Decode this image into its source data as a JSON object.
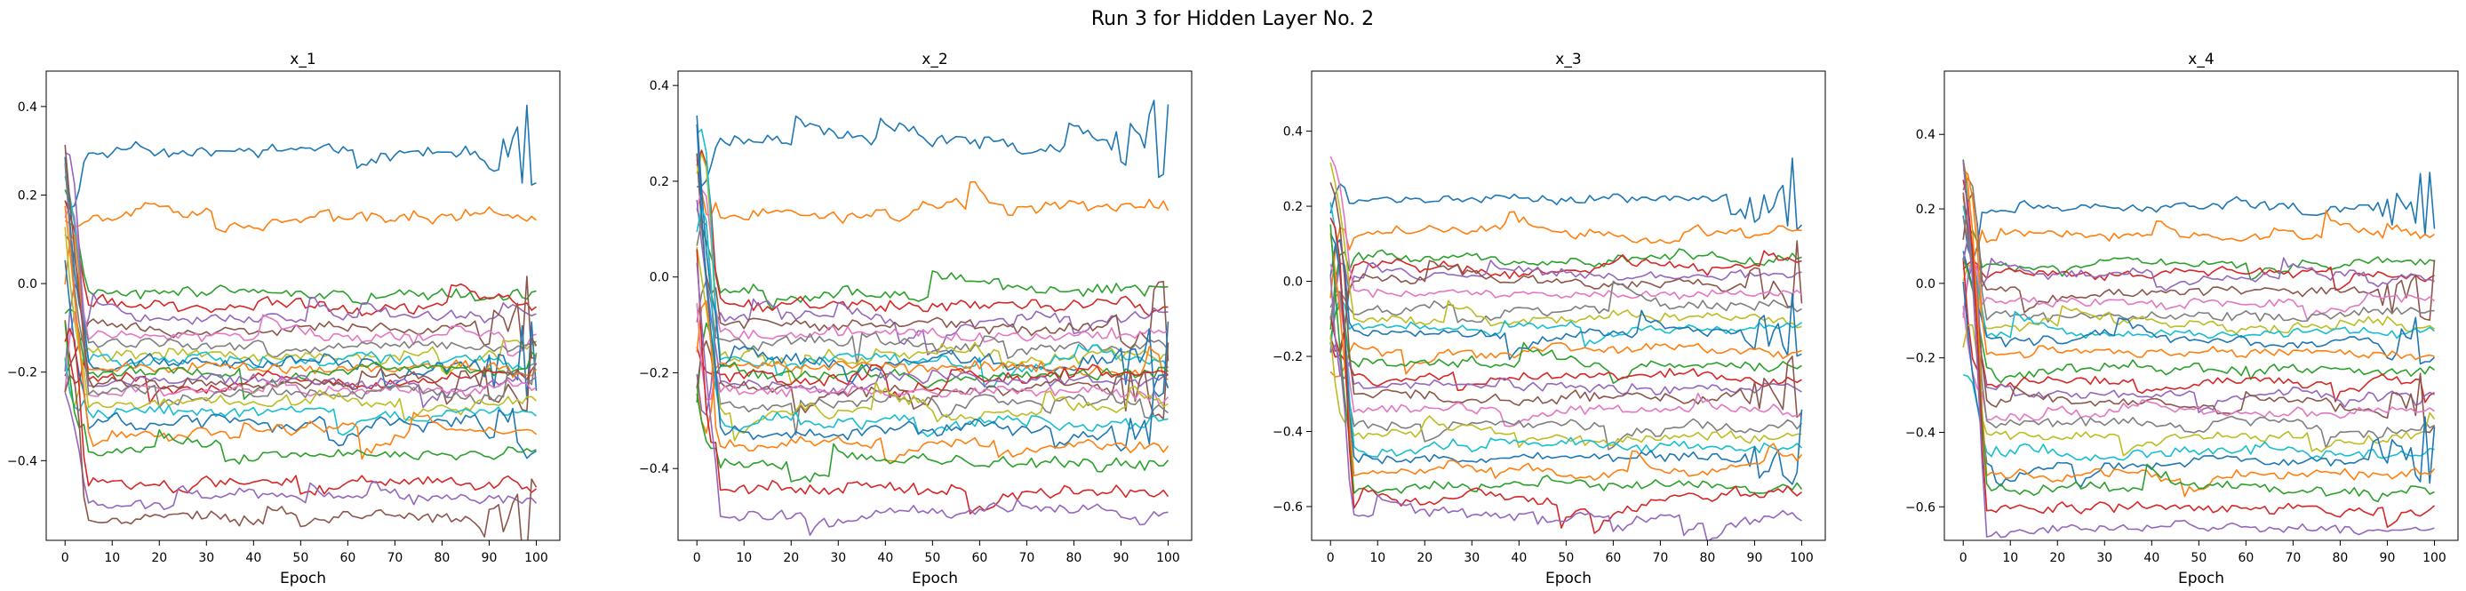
{
  "figure": {
    "title": "Run 3 for Hidden Layer No. 2",
    "palette": [
      "#1f77b4",
      "#ff7f0e",
      "#2ca02c",
      "#d62728",
      "#9467bd",
      "#8c564b",
      "#e377c2",
      "#7f7f7f",
      "#bcbd22",
      "#17becf"
    ]
  },
  "chart_data": [
    {
      "type": "line",
      "title": "x_1",
      "xlabel": "Epoch",
      "ylabel": "",
      "xlim": [
        -4,
        105
      ],
      "ylim": [
        -0.58,
        0.48
      ],
      "xticks": [
        0,
        10,
        20,
        30,
        40,
        50,
        60,
        70,
        80,
        90,
        100
      ],
      "yticks": [
        -0.4,
        -0.2,
        0.0,
        0.2,
        0.4
      ],
      "seed": 11,
      "series_final": [
        0.3,
        0.15,
        -0.02,
        -0.05,
        -0.08,
        -0.1,
        -0.12,
        -0.14,
        -0.16,
        -0.17,
        -0.18,
        -0.19,
        -0.2,
        -0.21,
        -0.22,
        -0.23,
        -0.24,
        -0.25,
        -0.27,
        -0.29,
        -0.31,
        -0.34,
        -0.38,
        -0.45,
        -0.49,
        -0.53
      ]
    },
    {
      "type": "line",
      "title": "x_2",
      "xlabel": "Epoch",
      "ylabel": "",
      "xlim": [
        -4,
        105
      ],
      "ylim": [
        -0.55,
        0.43
      ],
      "xticks": [
        0,
        10,
        20,
        30,
        40,
        50,
        60,
        70,
        80,
        90,
        100
      ],
      "yticks": [
        -0.4,
        -0.2,
        0.0,
        0.2,
        0.4
      ],
      "seed": 23,
      "series_final": [
        0.28,
        0.14,
        -0.03,
        -0.06,
        -0.08,
        -0.1,
        -0.12,
        -0.14,
        -0.16,
        -0.17,
        -0.18,
        -0.19,
        -0.2,
        -0.21,
        -0.22,
        -0.23,
        -0.24,
        -0.26,
        -0.28,
        -0.3,
        -0.32,
        -0.35,
        -0.39,
        -0.44,
        -0.49
      ]
    },
    {
      "type": "line",
      "title": "x_3",
      "xlabel": "Epoch",
      "ylabel": "",
      "xlim": [
        -4,
        105
      ],
      "ylim": [
        -0.69,
        0.56
      ],
      "xticks": [
        0,
        10,
        20,
        30,
        40,
        50,
        60,
        70,
        80,
        90,
        100
      ],
      "yticks": [
        -0.6,
        -0.4,
        -0.2,
        0.0,
        0.2,
        0.4
      ],
      "seed": 37,
      "series_final": [
        0.22,
        0.13,
        0.06,
        0.04,
        0.02,
        0.0,
        -0.03,
        -0.07,
        -0.1,
        -0.12,
        -0.14,
        -0.18,
        -0.22,
        -0.25,
        -0.28,
        -0.31,
        -0.34,
        -0.38,
        -0.41,
        -0.44,
        -0.47,
        -0.5,
        -0.55,
        -0.58,
        -0.62
      ]
    },
    {
      "type": "line",
      "title": "x_4",
      "xlabel": "Epoch",
      "ylabel": "",
      "xlim": [
        -4,
        105
      ],
      "ylim": [
        -0.69,
        0.57
      ],
      "xticks": [
        0,
        10,
        20,
        30,
        40,
        50,
        60,
        70,
        80,
        90,
        100
      ],
      "yticks": [
        -0.6,
        -0.4,
        -0.2,
        0.0,
        0.2,
        0.4
      ],
      "seed": 53,
      "series_final": [
        0.2,
        0.12,
        0.05,
        0.03,
        0.01,
        -0.02,
        -0.05,
        -0.08,
        -0.11,
        -0.13,
        -0.15,
        -0.19,
        -0.23,
        -0.26,
        -0.29,
        -0.32,
        -0.35,
        -0.38,
        -0.41,
        -0.45,
        -0.48,
        -0.51,
        -0.55,
        -0.6,
        -0.66
      ]
    }
  ]
}
